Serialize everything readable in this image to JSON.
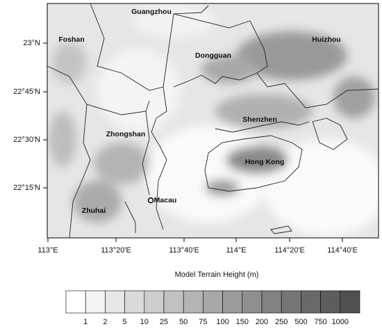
{
  "map": {
    "cities": [
      "Guangzhou",
      "Foshan",
      "Huizhou",
      "Dongguan",
      "Shenzhen",
      "Zhongshan",
      "Hong Kong",
      "Macau",
      "Zhuhai"
    ],
    "lon_ticks": [
      "113°E",
      "113°20'E",
      "113°40'E",
      "114°E",
      "114°20'E",
      "114°40'E"
    ],
    "lat_ticks": [
      "23°N",
      "22°45'N",
      "22°30'N",
      "22°15'N"
    ]
  },
  "colorbar": {
    "title": "Model Terrain Height (m)",
    "levels": [
      1,
      2,
      5,
      10,
      25,
      50,
      75,
      100,
      150,
      200,
      250,
      500,
      750,
      1000
    ]
  }
}
